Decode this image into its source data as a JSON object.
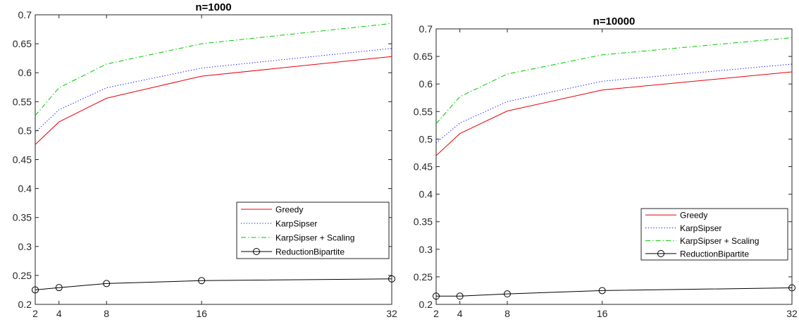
{
  "chart_data": [
    {
      "type": "line",
      "title": "n=1000",
      "xlabel": "",
      "ylabel": "",
      "xlim": [
        2,
        32
      ],
      "ylim": [
        0.2,
        0.7
      ],
      "xticks": [
        "2",
        "4",
        "8",
        "16",
        "32"
      ],
      "yticks": [
        "0.2",
        "0.25",
        "0.3",
        "0.35",
        "0.4",
        "0.45",
        "0.5",
        "0.55",
        "0.6",
        "0.65",
        "0.7"
      ],
      "x": [
        2,
        4,
        8,
        16,
        32
      ],
      "legend_position": "lower-right",
      "series": [
        {
          "name": "Greedy",
          "values": [
            0.476,
            0.515,
            0.556,
            0.594,
            0.628
          ],
          "color": "#e8000b",
          "dash": "solid",
          "marker": "none"
        },
        {
          "name": "KarpSipser",
          "values": [
            0.497,
            0.536,
            0.574,
            0.608,
            0.642
          ],
          "color": "#0000ff",
          "dash": "dotted",
          "marker": "none"
        },
        {
          "name": "KarpSipser + Scaling",
          "values": [
            0.526,
            0.574,
            0.615,
            0.65,
            0.685
          ],
          "color": "#00c800",
          "dash": "dashdot",
          "marker": "none"
        },
        {
          "name": "ReductionBipartite",
          "values": [
            0.225,
            0.229,
            0.236,
            0.241,
            0.244
          ],
          "color": "#000000",
          "dash": "solid",
          "marker": "circle"
        }
      ]
    },
    {
      "type": "line",
      "title": "n=10000",
      "xlabel": "",
      "ylabel": "",
      "xlim": [
        2,
        32
      ],
      "ylim": [
        0.2,
        0.7
      ],
      "xticks": [
        "2",
        "4",
        "8",
        "16",
        "32"
      ],
      "yticks": [
        "0.2",
        "0.25",
        "0.3",
        "0.35",
        "0.4",
        "0.45",
        "0.5",
        "0.55",
        "0.6",
        "0.65",
        "0.7"
      ],
      "x": [
        2,
        4,
        8,
        16,
        32
      ],
      "legend_position": "lower-right",
      "series": [
        {
          "name": "Greedy",
          "values": [
            0.47,
            0.51,
            0.551,
            0.589,
            0.622
          ],
          "color": "#e8000b",
          "dash": "solid",
          "marker": "none"
        },
        {
          "name": "KarpSipser",
          "values": [
            0.493,
            0.529,
            0.568,
            0.605,
            0.636
          ],
          "color": "#0000ff",
          "dash": "dotted",
          "marker": "none"
        },
        {
          "name": "KarpSipser + Scaling",
          "values": [
            0.528,
            0.577,
            0.618,
            0.653,
            0.684
          ],
          "color": "#00c800",
          "dash": "dashdot",
          "marker": "none"
        },
        {
          "name": "ReductionBipartite",
          "values": [
            0.215,
            0.215,
            0.219,
            0.225,
            0.23
          ],
          "color": "#000000",
          "dash": "solid",
          "marker": "circle"
        }
      ]
    }
  ]
}
